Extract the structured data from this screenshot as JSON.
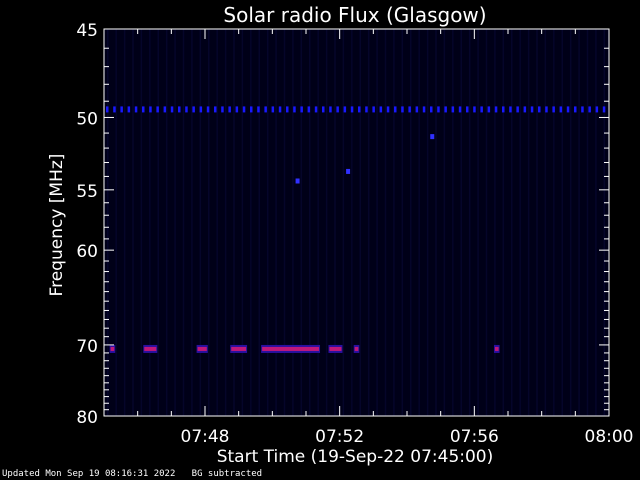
{
  "chart_data": {
    "type": "heatmap",
    "title": "Solar radio Flux (Glasgow)",
    "xlabel": "Start Time (19-Sep-22 07:45:00)",
    "ylabel": "Frequency [MHz]",
    "xlim_minutes_since_start": [
      0,
      15
    ],
    "x_ticks": [
      "07:48",
      "07:52",
      "07:56",
      "08:00"
    ],
    "ylim": [
      45,
      80
    ],
    "y_ticks": [
      45,
      50,
      55,
      60,
      70,
      80
    ],
    "y_scale": "reciprocal",
    "background_color": "#000018",
    "axis_color": "#ffffff",
    "features": [
      {
        "kind": "band",
        "freq_mhz": 49.5,
        "color": "#1818ff",
        "segments": [
          [
            "07:45:00",
            "08:00:00"
          ]
        ]
      },
      {
        "kind": "band",
        "freq_mhz": 70.5,
        "color": "#c0187a",
        "segments": [
          [
            "07:45:10",
            "07:45:20"
          ],
          [
            "07:46:10",
            "07:46:35"
          ],
          [
            "07:47:45",
            "07:48:05"
          ],
          [
            "07:48:45",
            "07:49:15"
          ],
          [
            "07:49:40",
            "07:51:25"
          ],
          [
            "07:51:40",
            "07:52:05"
          ],
          [
            "07:52:25",
            "07:52:35"
          ],
          [
            "07:56:35",
            "07:56:45"
          ]
        ]
      },
      {
        "kind": "spot",
        "time": "07:50:45",
        "freq_mhz": 54.3,
        "color": "#3030ff"
      },
      {
        "kind": "spot",
        "time": "07:52:15",
        "freq_mhz": 53.6,
        "color": "#3030ff"
      },
      {
        "kind": "spot",
        "time": "07:54:45",
        "freq_mhz": 51.2,
        "color": "#3030ff"
      }
    ]
  },
  "footer": {
    "text": "Updated Mon Sep 19 08:16:31 2022   BG subtracted"
  }
}
